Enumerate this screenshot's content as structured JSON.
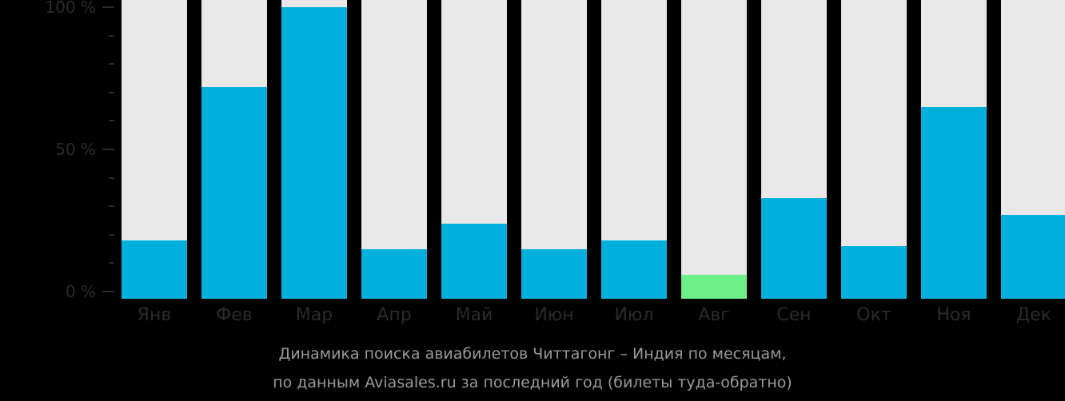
{
  "chart_data": {
    "type": "bar",
    "title": "Динамика поиска авиабилетов Читтагонг – Индия по месяцам,",
    "subtitle": "по данным Aviasales.ru за последний год (билеты туда-обратно)",
    "categories": [
      "Янв",
      "Фев",
      "Мар",
      "Апр",
      "Май",
      "Июн",
      "Июл",
      "Авг",
      "Сен",
      "Окт",
      "Ноя",
      "Дек"
    ],
    "values": [
      18,
      72,
      100,
      15,
      24,
      15,
      18,
      6,
      33,
      16,
      65,
      27
    ],
    "highlight_index": 7,
    "xlabel": "",
    "ylabel": "",
    "ylim": [
      0,
      100
    ],
    "yticks": [
      "0 %",
      "50 %",
      "100 %"
    ],
    "colors": {
      "bar": "#00b0dc",
      "highlight": "#6cf087",
      "track": "#e8e8e8",
      "background": "#000000"
    }
  },
  "axis": {
    "y_labels": [
      "100 %",
      "50 %",
      "0 %"
    ]
  },
  "caption": {
    "line1": "Динамика поиска авиабилетов Читтагонг – Индия по месяцам,",
    "line2": "по данным Aviasales.ru за последний год (билеты туда-обратно)"
  }
}
